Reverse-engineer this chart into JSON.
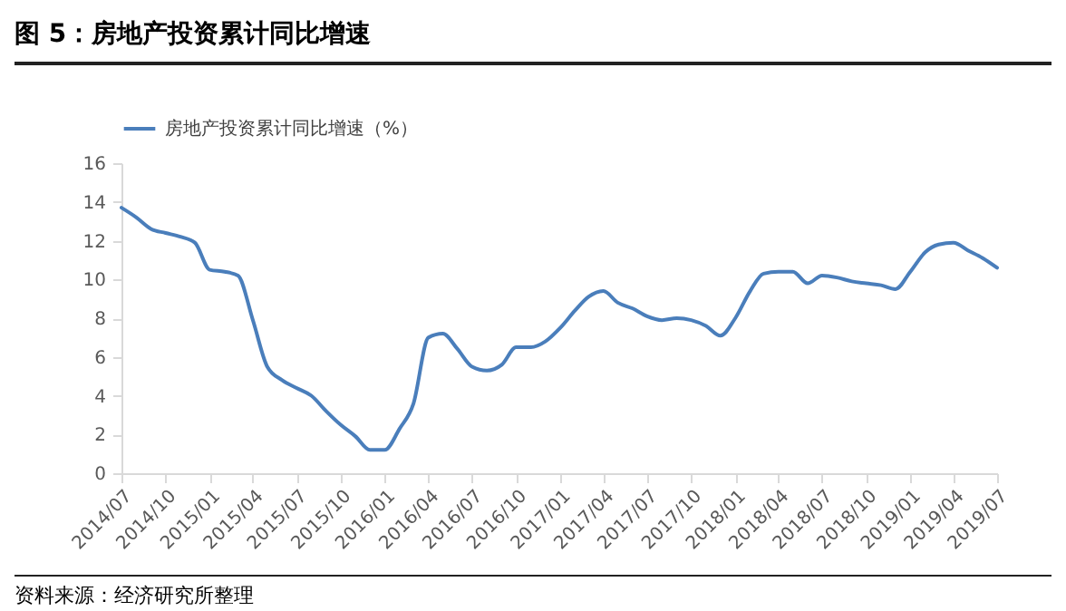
{
  "chart_data": {
    "type": "line",
    "title": "图 5：房地产投资累计同比增速",
    "annotations": [
      "资料来源：经济研究所整理"
    ],
    "x": [
      "2014-07",
      "2014-08",
      "2014-09",
      "2014-10",
      "2014-11",
      "2014-12",
      "2015-01",
      "2015-02",
      "2015-03",
      "2015-04",
      "2015-05",
      "2015-06",
      "2015-07",
      "2015-08",
      "2015-09",
      "2015-10",
      "2015-11",
      "2015-12",
      "2016-01",
      "2016-02",
      "2016-03",
      "2016-04",
      "2016-05",
      "2016-06",
      "2016-07",
      "2016-08",
      "2016-09",
      "2016-10",
      "2016-11",
      "2016-12",
      "2017-01",
      "2017-02",
      "2017-03",
      "2017-04",
      "2017-05",
      "2017-06",
      "2017-07",
      "2017-08",
      "2017-09",
      "2017-10",
      "2017-11",
      "2017-12",
      "2018-01",
      "2018-02",
      "2018-03",
      "2018-04",
      "2018-05",
      "2018-06",
      "2018-07",
      "2018-08",
      "2018-09",
      "2018-10",
      "2018-11",
      "2018-12",
      "2019-01",
      "2019-02",
      "2019-03",
      "2019-04",
      "2019-05",
      "2019-06",
      "2019-07"
    ],
    "series": [
      {
        "name": "房地产投资累计同比增速（%）",
        "color": "#4a7ebb",
        "values": [
          13.7,
          13.2,
          12.6,
          12.4,
          12.2,
          11.9,
          10.5,
          10.4,
          10.2,
          7.9,
          5.5,
          4.8,
          4.4,
          4.0,
          3.2,
          2.5,
          1.9,
          1.2,
          1.2,
          2.3,
          3.6,
          7.0,
          7.2,
          6.4,
          5.5,
          5.3,
          5.6,
          6.5,
          6.5,
          6.8,
          7.5,
          8.4,
          9.1,
          9.4,
          8.8,
          8.5,
          8.1,
          7.9,
          8.0,
          7.9,
          7.6,
          7.1,
          8.0,
          9.4,
          10.3,
          10.4,
          10.4,
          9.8,
          10.2,
          10.1,
          9.9,
          9.8,
          9.7,
          9.5,
          10.4,
          11.4,
          11.8,
          11.9,
          11.5,
          11.1,
          10.6
        ]
      }
    ],
    "xlim": [
      "2014-07",
      "2019-07"
    ],
    "xticks": [
      {
        "value": "2014-07",
        "label": "2014/07"
      },
      {
        "value": "2014-10",
        "label": "2014/10"
      },
      {
        "value": "2015-01",
        "label": "2015/01"
      },
      {
        "value": "2015-04",
        "label": "2015/04"
      },
      {
        "value": "2015-07",
        "label": "2015/07"
      },
      {
        "value": "2015-10",
        "label": "2015/10"
      },
      {
        "value": "2016-01",
        "label": "2016/01"
      },
      {
        "value": "2016-04",
        "label": "2016/04"
      },
      {
        "value": "2016-07",
        "label": "2016/07"
      },
      {
        "value": "2016-10",
        "label": "2016/10"
      },
      {
        "value": "2017-01",
        "label": "2017/01"
      },
      {
        "value": "2017-04",
        "label": "2017/04"
      },
      {
        "value": "2017-07",
        "label": "2017/07"
      },
      {
        "value": "2017-10",
        "label": "2017/10"
      },
      {
        "value": "2018-01",
        "label": "2018/01"
      },
      {
        "value": "2018-04",
        "label": "2018/04"
      },
      {
        "value": "2018-07",
        "label": "2018/07"
      },
      {
        "value": "2018-10",
        "label": "2018/10"
      },
      {
        "value": "2019-01",
        "label": "2019/01"
      },
      {
        "value": "2019-04",
        "label": "2019/04"
      },
      {
        "value": "2019-07",
        "label": "2019/07"
      }
    ],
    "ylim": [
      0,
      16
    ],
    "yticks": [
      0,
      2,
      4,
      6,
      8,
      10,
      12,
      14,
      16
    ],
    "grid": false,
    "legend": "top",
    "marker": "none",
    "line_style": "solid"
  }
}
